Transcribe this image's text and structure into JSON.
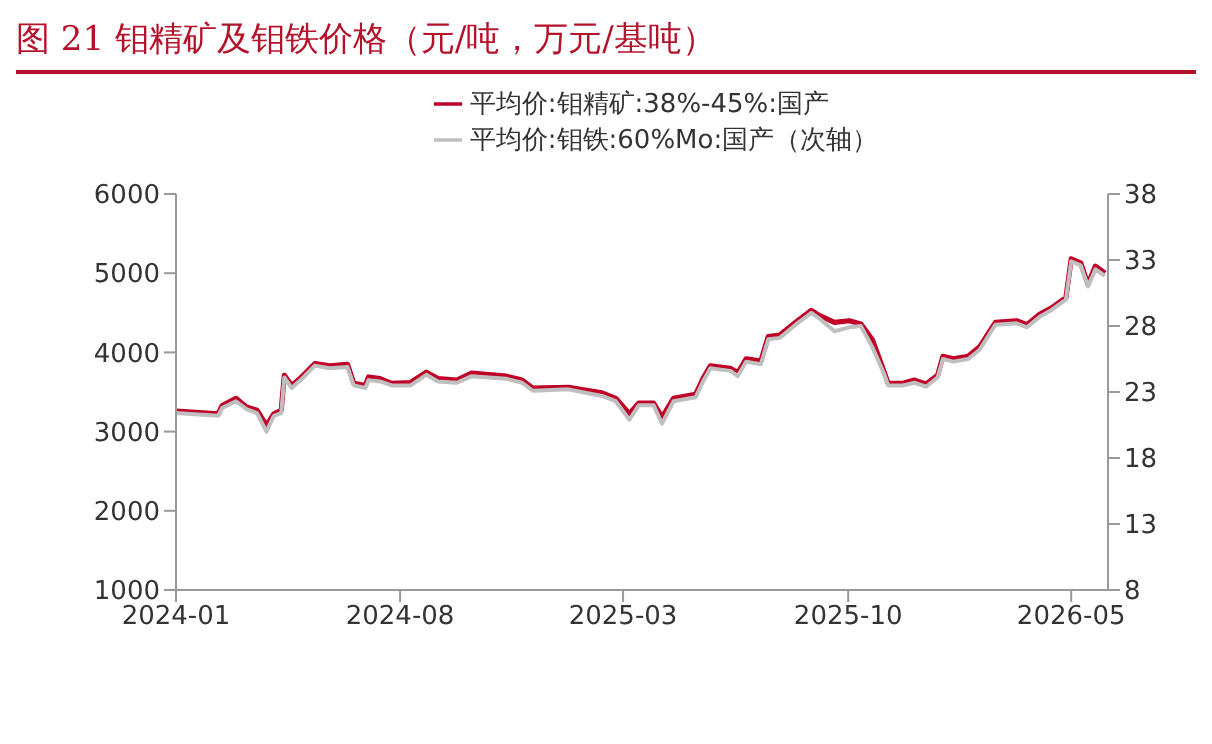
{
  "chart_data": {
    "type": "line",
    "title": "图 21 钼精矿及钼铁价格（元/吨，万元/基吨）",
    "x": [
      "2024-01-01",
      "2024-02-10",
      "2024-02-14",
      "2024-02-27",
      "2024-03-08",
      "2024-03-18",
      "2024-03-27",
      "2024-04-03",
      "2024-04-10",
      "2024-04-13",
      "2024-04-20",
      "2024-05-01",
      "2024-05-12",
      "2024-05-26",
      "2024-06-12",
      "2024-06-18",
      "2024-06-29",
      "2024-07-02",
      "2024-07-13",
      "2024-07-24",
      "2024-08-11",
      "2024-08-26",
      "2024-09-06",
      "2024-09-24",
      "2024-10-08",
      "2024-11-10",
      "2024-11-25",
      "2024-12-05",
      "2025-01-08",
      "2025-02-09",
      "2025-02-22",
      "2025-03-07",
      "2025-03-16",
      "2025-03-30",
      "2025-04-07",
      "2025-04-18",
      "2025-05-09",
      "2025-05-16",
      "2025-05-23",
      "2025-06-11",
      "2025-06-18",
      "2025-06-26",
      "2025-07-10",
      "2025-07-17",
      "2025-07-28",
      "2025-08-12",
      "2025-08-27",
      "2025-09-03",
      "2025-09-18",
      "2025-10-02",
      "2025-10-13",
      "2025-10-24",
      "2025-11-04",
      "2025-11-08",
      "2025-11-22",
      "2025-12-03",
      "2025-12-14",
      "2025-12-25",
      "2025-12-30",
      "2026-01-09",
      "2026-01-23",
      "2026-02-03",
      "2026-02-18",
      "2026-03-10",
      "2026-03-20",
      "2026-04-01",
      "2026-04-12",
      "2026-04-26",
      "2026-05-01",
      "2026-05-10",
      "2026-05-17",
      "2026-05-24",
      "2026-06-02"
    ],
    "series": [
      {
        "name": "平均价:钼精矿:38%-45%:国产",
        "color": "#c00026",
        "values": [
          3260,
          3225,
          3330,
          3420,
          3310,
          3270,
          3075,
          3225,
          3270,
          3710,
          3580,
          3710,
          3860,
          3830,
          3850,
          3610,
          3580,
          3690,
          3670,
          3610,
          3620,
          3750,
          3670,
          3650,
          3740,
          3700,
          3650,
          3550,
          3560,
          3490,
          3420,
          3225,
          3360,
          3360,
          3180,
          3420,
          3470,
          3670,
          3830,
          3800,
          3740,
          3920,
          3890,
          4200,
          4220,
          4380,
          4530,
          4470,
          4380,
          4400,
          4360,
          4160,
          3760,
          3610,
          3610,
          3650,
          3600,
          3710,
          3950,
          3920,
          3950,
          4070,
          4380,
          4400,
          4350,
          4480,
          4560,
          4690,
          5180,
          5130,
          4860,
          5090,
          5000
        ]
      },
      {
        "name": "平均价:钼铁:60%Mo:国产（次轴）",
        "color": "#bfbfbf",
        "axis": "y2",
        "values": [
          21.4,
          21.2,
          21.8,
          22.3,
          21.7,
          21.4,
          20.0,
          21.2,
          21.4,
          24.1,
          23.3,
          24.1,
          25.0,
          24.8,
          24.9,
          23.5,
          23.3,
          23.9,
          23.8,
          23.5,
          23.5,
          24.3,
          23.8,
          23.7,
          24.2,
          24.0,
          23.7,
          23.1,
          23.2,
          22.7,
          22.3,
          20.9,
          22.0,
          22.0,
          20.6,
          22.3,
          22.6,
          23.8,
          24.8,
          24.6,
          24.2,
          25.3,
          25.1,
          27.0,
          27.1,
          28.1,
          29.0,
          28.6,
          27.6,
          27.9,
          28.0,
          26.4,
          24.4,
          23.5,
          23.5,
          23.7,
          23.4,
          24.1,
          25.5,
          25.3,
          25.5,
          26.2,
          28.1,
          28.2,
          27.9,
          28.7,
          29.2,
          30.0,
          32.9,
          32.6,
          31.0,
          32.3,
          31.8
        ]
      }
    ],
    "xlim": [
      "2024-01-01",
      "2026-06-05"
    ],
    "xticks": [
      {
        "value": "2024-01-01",
        "label": "2024-01"
      },
      {
        "value": "2024-08-01",
        "label": "2024-08"
      },
      {
        "value": "2025-03-01",
        "label": "2025-03"
      },
      {
        "value": "2025-10-01",
        "label": "2025-10"
      },
      {
        "value": "2026-05-01",
        "label": "2026-05"
      }
    ],
    "ylim": [
      1000,
      6000
    ],
    "yticks": [
      1000,
      2000,
      3000,
      4000,
      5000,
      6000
    ],
    "y2lim": [
      8,
      38
    ],
    "y2ticks": [
      8,
      13,
      18,
      23,
      28,
      33,
      38
    ],
    "grid": false,
    "legend": "top",
    "marker": "none",
    "line_style": "solid"
  }
}
